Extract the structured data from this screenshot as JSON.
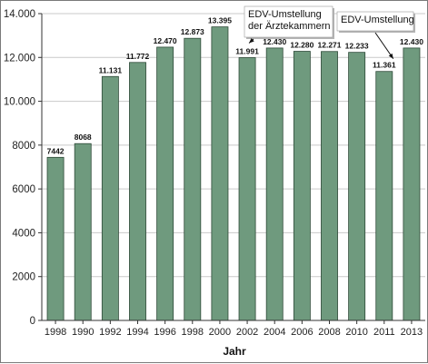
{
  "chart_data": {
    "type": "bar",
    "categories": [
      "1998",
      "1990",
      "1992",
      "1994",
      "1996",
      "1998",
      "2000",
      "2002",
      "2004",
      "2006",
      "2008",
      "2010",
      "2011",
      "2013"
    ],
    "values": [
      7442,
      8068,
      11131,
      11772,
      12470,
      12873,
      13395,
      11991,
      12430,
      12280,
      12271,
      12233,
      11361,
      12430
    ],
    "value_labels": [
      "7442",
      "8068",
      "11.131",
      "11.772",
      "12.470",
      "12.873",
      "13.395",
      "11.991",
      "12.430",
      "12.280",
      "12.271",
      "12.233",
      "11.361",
      "12.430"
    ],
    "xlabel": "Jahr",
    "ylabel": "",
    "ylim": [
      0,
      14000
    ],
    "yticks": [
      0,
      2000,
      4000,
      6000,
      8000,
      10000,
      12000,
      14000
    ],
    "ytick_labels": [
      "0",
      "2000",
      "4000",
      "6000",
      "8000",
      "10.000",
      "12.000",
      "14.000"
    ],
    "grid": true,
    "bar_color": "#6f9a7e",
    "bar_edge_color": "#2e4a38",
    "annotations": [
      {
        "lines": [
          "EDV-Umstellung",
          "der Ärztekammern"
        ],
        "category_index": 7
      },
      {
        "lines": [
          "EDV-Umstellung"
        ],
        "category_index": 12
      }
    ]
  }
}
